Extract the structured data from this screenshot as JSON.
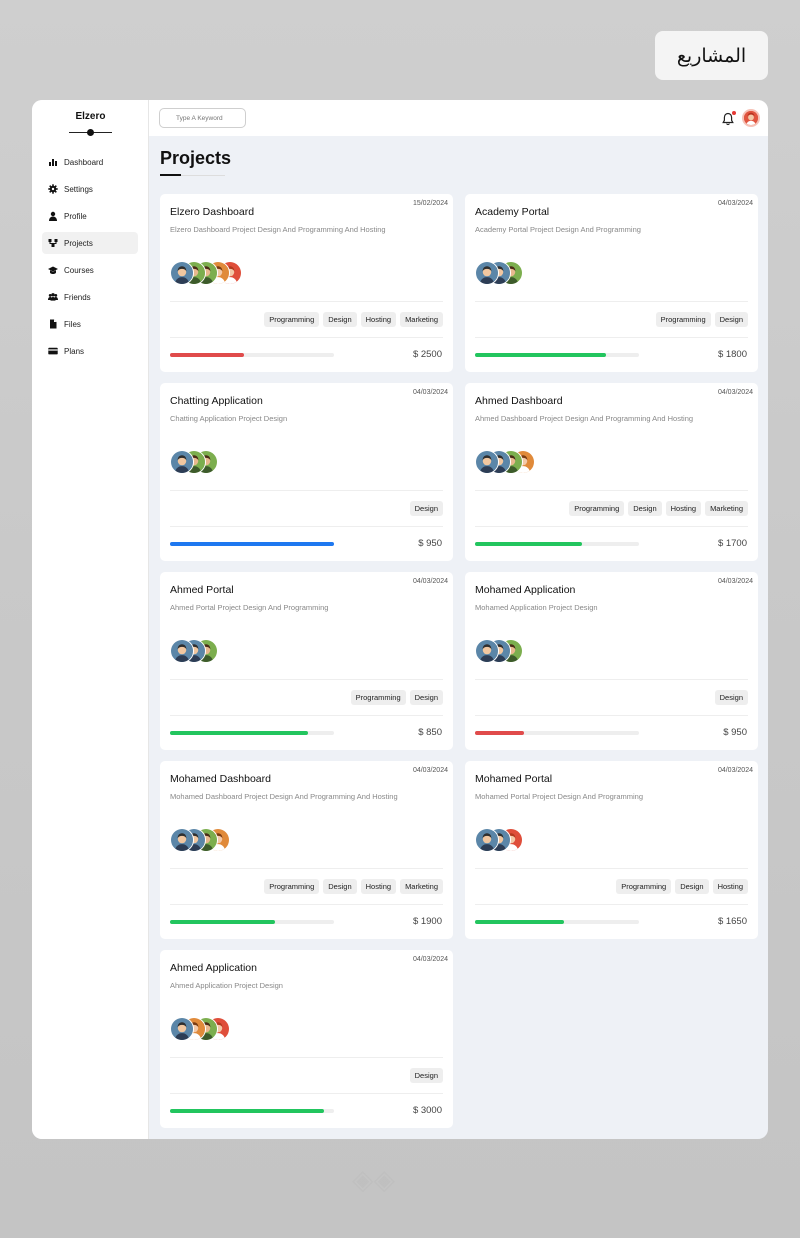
{
  "badge": {
    "text": "المشاريع"
  },
  "sidebar": {
    "brand": "Elzero",
    "items": [
      {
        "label": "Dashboard",
        "icon": "chart-bar-icon",
        "active": false
      },
      {
        "label": "Settings",
        "icon": "gear-icon",
        "active": false
      },
      {
        "label": "Profile",
        "icon": "user-icon",
        "active": false
      },
      {
        "label": "Projects",
        "icon": "diagram-icon",
        "active": true
      },
      {
        "label": "Courses",
        "icon": "graduation-cap-icon",
        "active": false
      },
      {
        "label": "Friends",
        "icon": "users-icon",
        "active": false
      },
      {
        "label": "Files",
        "icon": "file-icon",
        "active": false
      },
      {
        "label": "Plans",
        "icon": "credit-card-icon",
        "active": false
      }
    ]
  },
  "header": {
    "search_placeholder": "Type A Keyword",
    "notification_icon": "bell-icon"
  },
  "page": {
    "title": "Projects"
  },
  "colors": {
    "red": "#e04b4b",
    "green": "#22c55e",
    "blue": "#1e78f0"
  },
  "projects": [
    {
      "name": "Elzero Dashboard",
      "date": "15/02/2024",
      "desc": "Elzero Dashboard Project Design And Programming And Hosting",
      "avatars": [
        "blue",
        "green",
        "green",
        "orange",
        "red"
      ],
      "tags": [
        "Programming",
        "Design",
        "Hosting",
        "Marketing"
      ],
      "progress": 45,
      "color": "red",
      "price": "$ 2500"
    },
    {
      "name": "Academy Portal",
      "date": "04/03/2024",
      "desc": "Academy Portal Project Design And Programming",
      "avatars": [
        "blue",
        "blue",
        "green"
      ],
      "tags": [
        "Programming",
        "Design"
      ],
      "progress": 80,
      "color": "green",
      "price": "$ 1800"
    },
    {
      "name": "Chatting Application",
      "date": "04/03/2024",
      "desc": "Chatting Application Project Design",
      "avatars": [
        "blue",
        "green",
        "green"
      ],
      "tags": [
        "Design"
      ],
      "progress": 100,
      "color": "blue",
      "price": "$ 950"
    },
    {
      "name": "Ahmed Dashboard",
      "date": "04/03/2024",
      "desc": "Ahmed Dashboard Project Design And Programming And Hosting",
      "avatars": [
        "blue",
        "blue",
        "green",
        "orange"
      ],
      "tags": [
        "Programming",
        "Design",
        "Hosting",
        "Marketing"
      ],
      "progress": 65,
      "color": "green",
      "price": "$ 1700"
    },
    {
      "name": "Ahmed Portal",
      "date": "04/03/2024",
      "desc": "Ahmed Portal Project Design And Programming",
      "avatars": [
        "blue",
        "blue",
        "green"
      ],
      "tags": [
        "Programming",
        "Design"
      ],
      "progress": 84,
      "color": "green",
      "price": "$ 850"
    },
    {
      "name": "Mohamed Application",
      "date": "04/03/2024",
      "desc": "Mohamed Application Project Design",
      "avatars": [
        "blue",
        "blue",
        "green"
      ],
      "tags": [
        "Design"
      ],
      "progress": 30,
      "color": "red",
      "price": "$ 950"
    },
    {
      "name": "Mohamed Dashboard",
      "date": "04/03/2024",
      "desc": "Mohamed Dashboard Project Design And Programming And Hosting",
      "avatars": [
        "blue",
        "blue",
        "green",
        "orange"
      ],
      "tags": [
        "Programming",
        "Design",
        "Hosting",
        "Marketing"
      ],
      "progress": 64,
      "color": "green",
      "price": "$ 1900"
    },
    {
      "name": "Mohamed Portal",
      "date": "04/03/2024",
      "desc": "Mohamed Portal Project Design And Programming",
      "avatars": [
        "blue",
        "blue",
        "red"
      ],
      "tags": [
        "Programming",
        "Design",
        "Hosting"
      ],
      "progress": 54,
      "color": "green",
      "price": "$ 1650"
    },
    {
      "name": "Ahmed Application",
      "date": "04/03/2024",
      "desc": "Ahmed Application Project Design",
      "avatars": [
        "blue",
        "orange",
        "green",
        "red"
      ],
      "tags": [
        "Design"
      ],
      "progress": 94,
      "color": "green",
      "price": "$ 3000"
    }
  ]
}
